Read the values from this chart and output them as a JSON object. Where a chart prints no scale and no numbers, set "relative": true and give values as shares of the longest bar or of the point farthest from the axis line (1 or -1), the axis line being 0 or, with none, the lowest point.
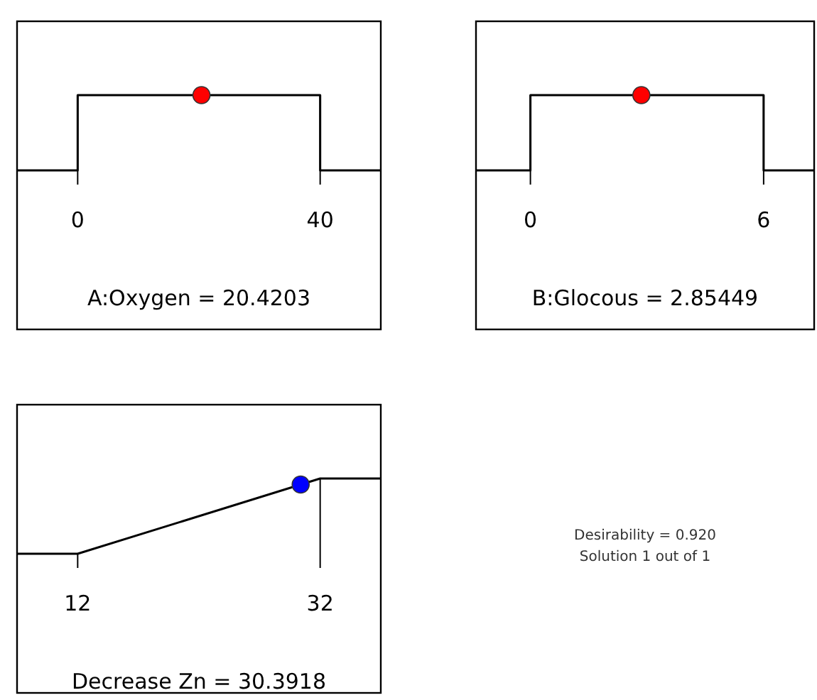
{
  "chart_data": [
    {
      "type": "line",
      "relative": true,
      "xlabel": "A:Oxygen = 20.4203",
      "xlim": [
        -10,
        50
      ],
      "xticks": [
        0,
        40
      ],
      "marker": "none",
      "series": [
        {
          "type": "line",
          "color": "#000000",
          "x": [
            -10,
            0,
            0,
            40,
            40,
            50
          ],
          "values": [
            0,
            0,
            1,
            1,
            0,
            0
          ]
        },
        {
          "type": "scatter",
          "marker": "circle",
          "color": "#ff0000",
          "x": [
            20.4203
          ],
          "values": [
            1
          ]
        }
      ]
    },
    {
      "type": "line",
      "relative": true,
      "xlabel": "B:Glocous = 2.85449",
      "xlim": [
        -1.4,
        7.3
      ],
      "xticks": [
        0,
        6
      ],
      "marker": "none",
      "series": [
        {
          "type": "line",
          "color": "#000000",
          "x": [
            -1.4,
            0,
            0,
            6,
            6,
            7.3
          ],
          "values": [
            0,
            0,
            1,
            1,
            0,
            0
          ]
        },
        {
          "type": "scatter",
          "marker": "circle",
          "color": "#ff0000",
          "x": [
            2.85449
          ],
          "values": [
            1
          ]
        }
      ]
    },
    {
      "type": "line",
      "relative": true,
      "xlabel": "Decrease Zn = 30.3918",
      "xlim": [
        7,
        37
      ],
      "xticks": [
        12,
        32
      ],
      "marker": "none",
      "series": [
        {
          "type": "line",
          "color": "#000000",
          "x": [
            7,
            12,
            32,
            37
          ],
          "values": [
            0,
            0,
            1,
            1
          ]
        },
        {
          "type": "scatter",
          "marker": "circle",
          "color": "#0000ff",
          "x": [
            30.3918
          ],
          "values": [
            0.92
          ]
        }
      ]
    },
    {
      "type": "other",
      "annotations": [
        "Desirability = 0.920",
        "Solution 1 out of 1"
      ]
    }
  ]
}
